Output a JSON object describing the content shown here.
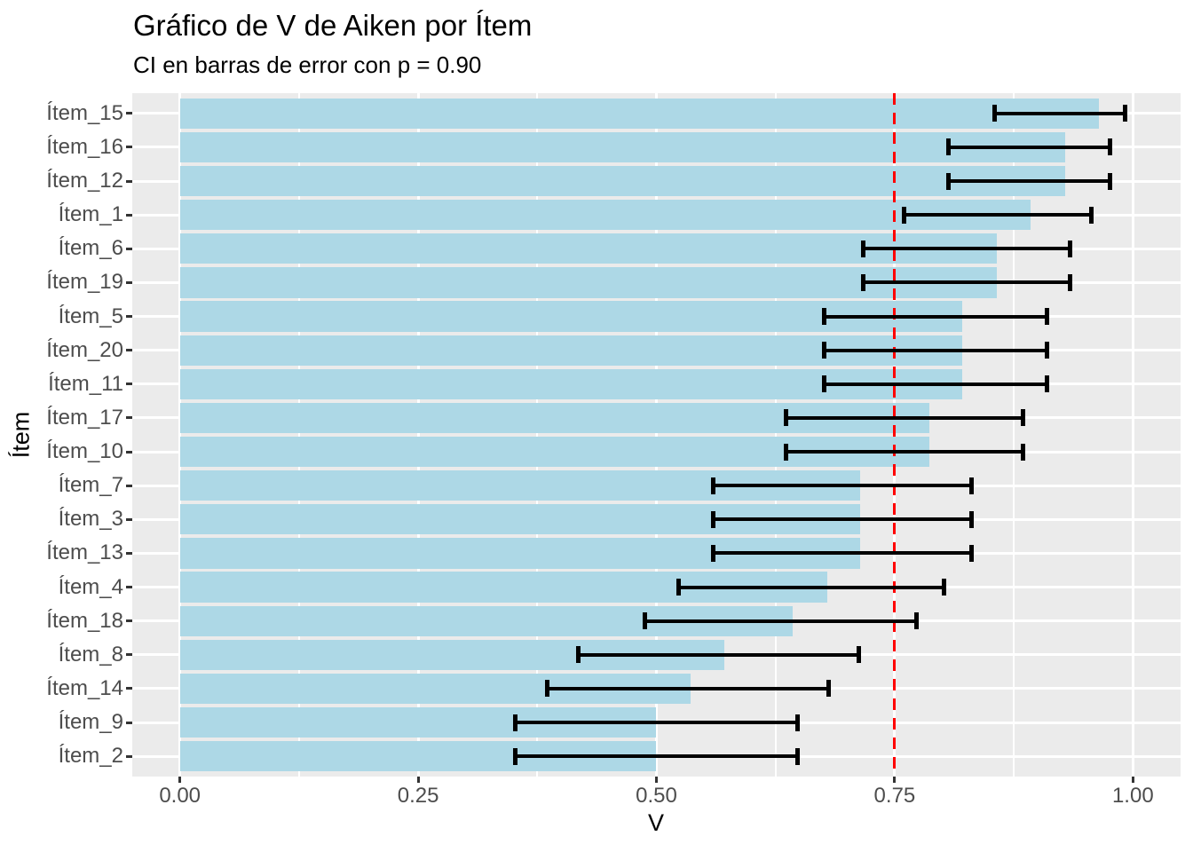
{
  "chart_data": {
    "type": "bar",
    "orientation": "horizontal",
    "title": "Gráfico de V de Aiken por Ítem",
    "subtitle": "CI en barras de error con p = 0.90",
    "xlabel": "V",
    "ylabel": "Ítem",
    "xlim": [
      0,
      1
    ],
    "x_tick_labels": [
      "0.00",
      "0.25",
      "0.50",
      "0.75",
      "1.00"
    ],
    "x_tick_values": [
      0,
      0.25,
      0.5,
      0.75,
      1.0
    ],
    "x_minor_ticks": [
      0.125,
      0.375,
      0.625,
      0.875
    ],
    "grid": "white major and minor gridlines on grey panel",
    "legend_position": "none",
    "reference_line": {
      "value": 0.75,
      "color": "#FF0000",
      "style": "dashed"
    },
    "error_bars": "confidence intervals, p = 0.90",
    "items": [
      {
        "label": "Ítem_15",
        "v": 0.964,
        "ci_lower": 0.855,
        "ci_upper": 0.992
      },
      {
        "label": "Ítem_16",
        "v": 0.929,
        "ci_lower": 0.806,
        "ci_upper": 0.976
      },
      {
        "label": "Ítem_12",
        "v": 0.929,
        "ci_lower": 0.806,
        "ci_upper": 0.976
      },
      {
        "label": "Ítem_1",
        "v": 0.893,
        "ci_lower": 0.76,
        "ci_upper": 0.956
      },
      {
        "label": "Ítem_6",
        "v": 0.857,
        "ci_lower": 0.717,
        "ci_upper": 0.934
      },
      {
        "label": "Ítem_19",
        "v": 0.857,
        "ci_lower": 0.717,
        "ci_upper": 0.934
      },
      {
        "label": "Ítem_5",
        "v": 0.821,
        "ci_lower": 0.676,
        "ci_upper": 0.91
      },
      {
        "label": "Ítem_20",
        "v": 0.821,
        "ci_lower": 0.676,
        "ci_upper": 0.91
      },
      {
        "label": "Ítem_11",
        "v": 0.821,
        "ci_lower": 0.676,
        "ci_upper": 0.91
      },
      {
        "label": "Ítem_17",
        "v": 0.786,
        "ci_lower": 0.636,
        "ci_upper": 0.885
      },
      {
        "label": "Ítem_10",
        "v": 0.786,
        "ci_lower": 0.636,
        "ci_upper": 0.885
      },
      {
        "label": "Ítem_7",
        "v": 0.714,
        "ci_lower": 0.56,
        "ci_upper": 0.831
      },
      {
        "label": "Ítem_3",
        "v": 0.714,
        "ci_lower": 0.56,
        "ci_upper": 0.831
      },
      {
        "label": "Ítem_13",
        "v": 0.714,
        "ci_lower": 0.56,
        "ci_upper": 0.831
      },
      {
        "label": "Ítem_4",
        "v": 0.679,
        "ci_lower": 0.523,
        "ci_upper": 0.802
      },
      {
        "label": "Ítem_18",
        "v": 0.643,
        "ci_lower": 0.488,
        "ci_upper": 0.773
      },
      {
        "label": "Ítem_8",
        "v": 0.571,
        "ci_lower": 0.418,
        "ci_upper": 0.712
      },
      {
        "label": "Ítem_14",
        "v": 0.536,
        "ci_lower": 0.385,
        "ci_upper": 0.681
      },
      {
        "label": "Ítem_9",
        "v": 0.5,
        "ci_lower": 0.352,
        "ci_upper": 0.648
      },
      {
        "label": "Ítem_2",
        "v": 0.5,
        "ci_lower": 0.352,
        "ci_upper": 0.648
      }
    ],
    "colors": {
      "bar": "#ADD8E6",
      "panel_background": "#EBEBEB",
      "gridline": "#FFFFFF",
      "reference_line": "#FF0000",
      "error_bar": "#000000",
      "axis_text": "#4D4D4D"
    }
  }
}
